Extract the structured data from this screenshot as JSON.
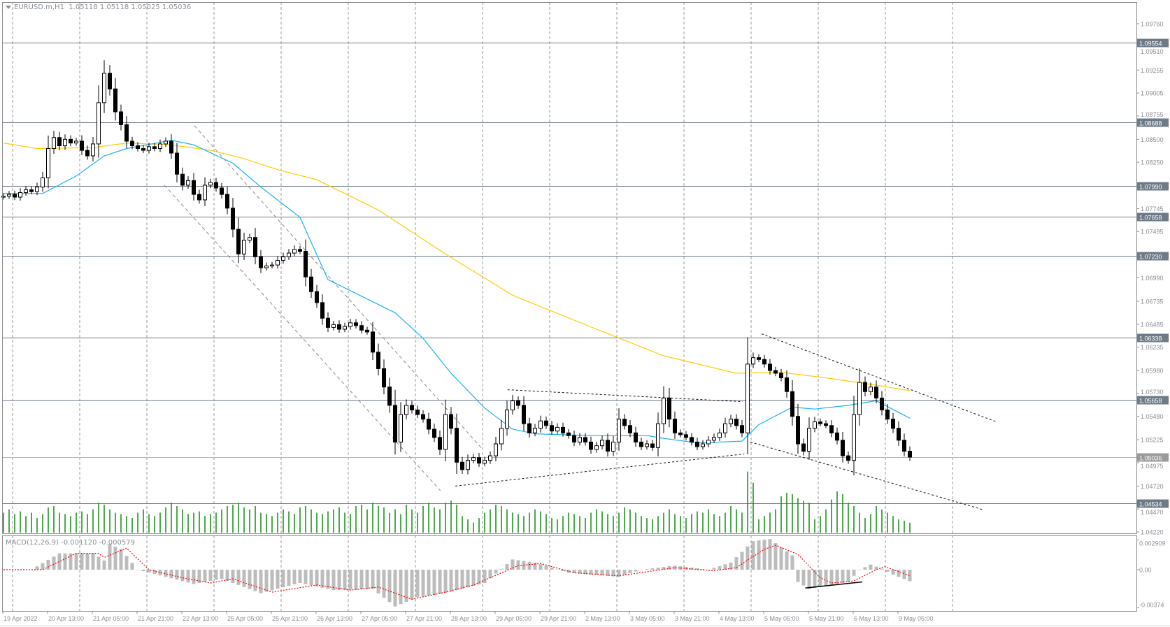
{
  "header": {
    "symbol_timeframe": "EURUSD.m,H1",
    "ohlc": "1.05118 1.05118 1.05025 1.05036"
  },
  "chart_data": {
    "type": "candlestick",
    "symbol": "EURUSD.m",
    "timeframe": "H1",
    "grid": true,
    "price_axis": {
      "min": 1.0422,
      "max": 1.0976,
      "ticks": [
        "1.09760",
        "1.09510",
        "1.09255",
        "1.09005",
        "1.08755",
        "1.08500",
        "1.08250",
        "1.07745",
        "1.07495",
        "1.06990",
        "1.06735",
        "1.06485",
        "1.06235",
        "1.05980",
        "1.05730",
        "1.05480",
        "1.05225",
        "1.04975",
        "1.04720",
        "1.04470",
        "1.04220"
      ]
    },
    "levels": [
      "1.09554",
      "1.08688",
      "1.07990",
      "1.07658",
      "1.07230",
      "1.06338",
      "1.05658",
      "1.04534"
    ],
    "current_price": "1.05036",
    "first_open": 1.0787,
    "closes": [
      1.0788,
      1.079,
      1.0787,
      1.0792,
      1.0795,
      1.0793,
      1.0798,
      1.0808,
      1.084,
      1.0852,
      1.0843,
      1.085,
      1.0846,
      1.0848,
      1.0838,
      1.0832,
      1.0845,
      1.089,
      1.0922,
      1.0905,
      1.088,
      1.0866,
      1.0848,
      1.0843,
      1.084,
      1.0838,
      1.0842,
      1.084,
      1.0845,
      1.0848,
      1.0835,
      1.0812,
      1.08,
      1.0805,
      1.079,
      1.0784,
      1.08,
      1.0803,
      1.0797,
      1.079,
      1.0775,
      1.0752,
      1.0725,
      1.074,
      1.0743,
      1.0722,
      1.071,
      1.0712,
      1.0713,
      1.0718,
      1.0722,
      1.0726,
      1.073,
      1.0728,
      1.07,
      1.0684,
      1.0672,
      1.0655,
      1.0645,
      1.0648,
      1.0643,
      1.0646,
      1.065,
      1.0647,
      1.0642,
      1.064,
      1.0618,
      1.06,
      1.058,
      1.056,
      1.052,
      1.055,
      1.056,
      1.0555,
      1.055,
      1.0545,
      1.0534,
      1.0525,
      1.0512,
      1.055,
      1.0535,
      1.0498,
      1.049,
      1.05,
      1.0503,
      1.0497,
      1.05,
      1.0505,
      1.0518,
      1.0535,
      1.0555,
      1.0565,
      1.056,
      1.054,
      1.053,
      1.0535,
      1.0543,
      1.0538,
      1.0532,
      1.0536,
      1.053,
      1.0527,
      1.052,
      1.0525,
      1.052,
      1.0512,
      1.0516,
      1.0522,
      1.051,
      1.052,
      1.0545,
      1.0538,
      1.053,
      1.052,
      1.0515,
      1.0518,
      1.0514,
      1.054,
      1.0568,
      1.0545,
      1.053,
      1.0528,
      1.0525,
      1.052,
      1.0515,
      1.0518,
      1.0522,
      1.0525,
      1.053,
      1.054,
      1.0545,
      1.0538,
      1.053,
      1.0605,
      1.0612,
      1.061,
      1.0605,
      1.0598,
      1.0595,
      1.059,
      1.0575,
      1.0548,
      1.0518,
      1.051,
      1.0535,
      1.0542,
      1.054,
      1.0538,
      1.053,
      1.0522,
      1.0505,
      1.05,
      1.055,
      1.0585,
      1.0575,
      1.058,
      1.0568,
      1.0555,
      1.0545,
      1.0535,
      1.0522,
      1.051,
      1.05036
    ],
    "volumes": [
      30,
      35,
      28,
      32,
      25,
      30,
      22,
      28,
      38,
      40,
      30,
      28,
      25,
      30,
      32,
      28,
      35,
      45,
      42,
      35,
      30,
      28,
      25,
      22,
      30,
      35,
      28,
      25,
      30,
      38,
      45,
      40,
      35,
      28,
      30,
      32,
      25,
      28,
      30,
      35,
      40,
      42,
      45,
      38,
      35,
      40,
      30,
      28,
      25,
      30,
      35,
      32,
      28,
      38,
      40,
      35,
      30,
      28,
      32,
      35,
      38,
      30,
      28,
      40,
      42,
      35,
      45,
      40,
      38,
      30,
      35,
      28,
      42,
      35,
      30,
      40,
      45,
      38,
      35,
      45,
      48,
      42,
      25,
      20,
      15,
      22,
      30,
      35,
      42,
      40,
      35,
      30,
      28,
      25,
      30,
      35,
      32,
      28,
      22,
      20,
      25,
      30,
      28,
      25,
      22,
      30,
      35,
      32,
      28,
      25,
      30,
      38,
      35,
      30,
      25,
      22,
      20,
      25,
      30,
      35,
      28,
      25,
      22,
      28,
      32,
      30,
      35,
      28,
      25,
      30,
      40,
      35,
      30,
      92,
      75,
      20,
      25,
      30,
      35,
      55,
      60,
      58,
      52,
      48,
      45,
      20,
      25,
      35,
      50,
      62,
      58,
      45,
      40,
      30,
      22,
      28,
      40,
      35,
      30,
      25,
      20,
      18,
      15
    ],
    "ma_blue": [
      [
        0,
        1.0791
      ],
      [
        7,
        1.0791
      ],
      [
        13,
        1.081
      ],
      [
        18,
        1.0832
      ],
      [
        22,
        1.084
      ],
      [
        30,
        1.0849
      ],
      [
        34,
        1.0844
      ],
      [
        41,
        1.0824
      ],
      [
        46,
        1.0798
      ],
      [
        53,
        1.0765
      ],
      [
        58,
        1.0697
      ],
      [
        70,
        1.0661
      ],
      [
        75,
        1.0633
      ],
      [
        80,
        1.0595
      ],
      [
        86,
        1.0557
      ],
      [
        91,
        1.0534
      ],
      [
        95,
        1.0529
      ],
      [
        105,
        1.0527
      ],
      [
        115,
        1.0527
      ],
      [
        118,
        1.0524
      ],
      [
        124,
        1.0519
      ],
      [
        132,
        1.0521
      ],
      [
        135,
        1.0539
      ],
      [
        141,
        1.0558
      ],
      [
        145,
        1.0556
      ],
      [
        151,
        1.056
      ],
      [
        156,
        1.0565
      ],
      [
        162,
        1.0546
      ]
    ],
    "ma_yellow": [
      [
        0,
        1.0846
      ],
      [
        6,
        1.084
      ],
      [
        16,
        1.0841
      ],
      [
        22,
        1.0846
      ],
      [
        30,
        1.0844
      ],
      [
        37,
        1.0838
      ],
      [
        43,
        1.0829
      ],
      [
        49,
        1.0817
      ],
      [
        56,
        1.0806
      ],
      [
        67,
        1.0773
      ],
      [
        79,
        1.0725
      ],
      [
        91,
        1.068
      ],
      [
        106,
        1.0643
      ],
      [
        118,
        1.0614
      ],
      [
        131,
        1.0595
      ],
      [
        139,
        1.0596
      ],
      [
        147,
        1.059
      ],
      [
        156,
        1.0582
      ],
      [
        162,
        1.0576
      ]
    ],
    "trendlines": [
      {
        "style": "channel",
        "points": [
          [
            34.1,
            1.0865
          ],
          [
            85.5,
            1.0513
          ]
        ]
      },
      {
        "style": "channel",
        "points": [
          [
            28.75,
            1.08
          ],
          [
            78.1,
            1.0467
          ]
        ]
      },
      {
        "style": "pattern",
        "points": [
          [
            90.1,
            1.0577
          ],
          [
            132.1,
            1.0564
          ]
        ]
      },
      {
        "style": "pattern",
        "points": [
          [
            80.75,
            1.0472
          ],
          [
            132.4,
            1.0507
          ]
        ]
      },
      {
        "style": "pattern",
        "points": [
          [
            135.5,
            1.0638
          ],
          [
            177.5,
            1.0542
          ]
        ]
      },
      {
        "style": "pattern",
        "points": [
          [
            133.5,
            1.052
          ],
          [
            175.25,
            1.0446
          ]
        ]
      }
    ],
    "time_labels": [
      "19 Apr 2022",
      "20 Apr 13:00",
      "21 Apr 05:00",
      "21 Apr 21:00",
      "22 Apr 13:00",
      "25 Apr 05:00",
      "25 Apr 21:00",
      "26 Apr 13:00",
      "27 Apr 05:00",
      "27 Apr 21:00",
      "28 Apr 13:00",
      "29 Apr 05:00",
      "29 Apr 21:00",
      "2 May 13:00",
      "3 May 05:00",
      "3 May 21:00",
      "4 May 13:00",
      "5 May 05:00",
      "5 May 21:00",
      "6 May 13:00",
      "9 May 05:00"
    ],
    "macd": {
      "label": "MACD(12,26,9) -0.001120 -0.000579",
      "params": [
        12,
        26,
        9
      ],
      "main_value": -0.00112,
      "signal_value": -0.000579,
      "range": [
        -0.00374,
        0.002909
      ],
      "axis_ticks": [
        "0.002909",
        "0.00",
        "-0.00374"
      ],
      "histogram": [
        [
          0,
          0
        ],
        [
          5,
          0
        ],
        [
          10,
          0.0016
        ],
        [
          16,
          0.0016
        ],
        [
          18,
          0.0009
        ],
        [
          19,
          0.0025
        ],
        [
          21,
          0.002
        ],
        [
          24,
          0
        ],
        [
          34,
          -0.0014
        ],
        [
          39,
          -0.0009
        ],
        [
          46,
          -0.0023
        ],
        [
          53,
          -0.0013
        ],
        [
          59,
          -0.002
        ],
        [
          66,
          -0.0019
        ],
        [
          70,
          -0.0036
        ],
        [
          74,
          -0.0027
        ],
        [
          79,
          -0.0023
        ],
        [
          86,
          -0.0013
        ],
        [
          91,
          0.001
        ],
        [
          95,
          0.0007
        ],
        [
          101,
          -0.0003
        ],
        [
          110,
          -0.0007
        ],
        [
          114,
          0
        ],
        [
          120,
          0.0004
        ],
        [
          126,
          0
        ],
        [
          130,
          0.0007
        ],
        [
          134,
          0.0028
        ],
        [
          137,
          0.003
        ],
        [
          141,
          0.0014
        ],
        [
          142,
          -0.0012
        ],
        [
          144,
          -0.0019
        ],
        [
          151,
          -0.0012
        ],
        [
          153,
          0
        ],
        [
          155,
          0.0005
        ],
        [
          157,
          0.0001
        ],
        [
          159,
          -0.0005
        ],
        [
          162,
          -0.00112
        ]
      ],
      "signal": [
        [
          0,
          0
        ],
        [
          7,
          0
        ],
        [
          13,
          0.0016
        ],
        [
          17,
          0.0016
        ],
        [
          18,
          0.0012
        ],
        [
          22,
          0.0021
        ],
        [
          26,
          0
        ],
        [
          32,
          -0.0008
        ],
        [
          37,
          -0.0013
        ],
        [
          41,
          -0.0009
        ],
        [
          48,
          -0.0022
        ],
        [
          56,
          -0.0015
        ],
        [
          62,
          -0.002
        ],
        [
          67,
          -0.0017
        ],
        [
          73,
          -0.0029
        ],
        [
          79,
          -0.0022
        ],
        [
          84,
          -0.0015
        ],
        [
          92,
          0.0004
        ],
        [
          96,
          0.0006
        ],
        [
          102,
          -0.0003
        ],
        [
          110,
          -0.0006
        ],
        [
          120,
          0.0002
        ],
        [
          127,
          -0.0001
        ],
        [
          131,
          0.0002
        ],
        [
          136,
          0.002
        ],
        [
          138,
          0.0024
        ],
        [
          142,
          0.0015
        ],
        [
          146,
          -0.0008
        ],
        [
          148,
          -0.0013
        ],
        [
          152,
          -0.0011
        ],
        [
          156,
          0
        ],
        [
          157.5,
          0.0003
        ],
        [
          162,
          -0.000579
        ]
      ],
      "annotation_line": [
        [
          143.3,
          -0.0018
        ],
        [
          153.5,
          -0.0012
        ]
      ]
    },
    "colors": {
      "bull_body": "#ffffff",
      "bear_body": "#000000",
      "candle_outline": "#000000",
      "ma_blue": "#19b4ee",
      "ma_yellow": "#ffcc00",
      "volume": "#128a12",
      "level_line": "#6e7a87",
      "current_price_line": "#b9b9b9",
      "level_label_bg": "#6e7a87",
      "current_label_bg": "#9a9a9a",
      "macd_histogram": "#bcbcbc",
      "macd_signal": "#ff0000",
      "grid": "#9a9a9a"
    }
  }
}
